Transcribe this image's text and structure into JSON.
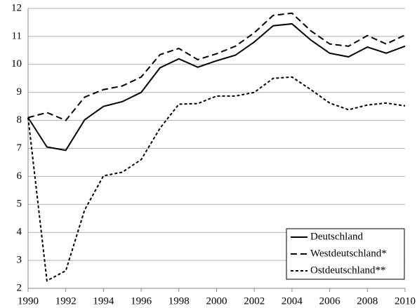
{
  "chart_data": {
    "type": "line",
    "x": [
      1990,
      1991,
      1992,
      1993,
      1994,
      1995,
      1996,
      1997,
      1998,
      1999,
      2000,
      2001,
      2002,
      2003,
      2004,
      2005,
      2006,
      2007,
      2008,
      2009,
      2010
    ],
    "series": [
      {
        "name": "Deutschland",
        "color": "#000000",
        "line_style": "solid",
        "values": [
          8.1,
          7.05,
          6.93,
          8.02,
          8.5,
          8.67,
          9.0,
          9.88,
          10.2,
          9.9,
          10.13,
          10.33,
          10.8,
          11.38,
          11.45,
          10.87,
          10.4,
          10.27,
          10.62,
          10.4,
          10.65
        ]
      },
      {
        "name": "Westdeutschland*",
        "color": "#000000",
        "line_style": "dashed",
        "values": [
          8.1,
          8.28,
          8.0,
          8.83,
          9.1,
          9.23,
          9.55,
          10.35,
          10.57,
          10.17,
          10.38,
          10.65,
          11.13,
          11.75,
          11.83,
          11.2,
          10.73,
          10.65,
          11.03,
          10.73,
          11.05
        ]
      },
      {
        "name": "Ostdeutschland**",
        "color": "#000000",
        "line_style": "dotted",
        "values": [
          8.1,
          2.27,
          2.63,
          4.8,
          6.02,
          6.15,
          6.6,
          7.72,
          8.58,
          8.6,
          8.87,
          8.87,
          9.0,
          9.5,
          9.55,
          9.1,
          8.62,
          8.38,
          8.55,
          8.62,
          8.52
        ]
      }
    ],
    "xlim": [
      1990,
      2010
    ],
    "xticks": [
      1990,
      1992,
      1994,
      1996,
      1998,
      2000,
      2002,
      2004,
      2006,
      2008,
      2010
    ],
    "ylim": [
      2,
      12
    ],
    "yticks": [
      2,
      3,
      4,
      5,
      6,
      7,
      8,
      9,
      10,
      11,
      12
    ],
    "grid": true,
    "legend": "lower right"
  }
}
